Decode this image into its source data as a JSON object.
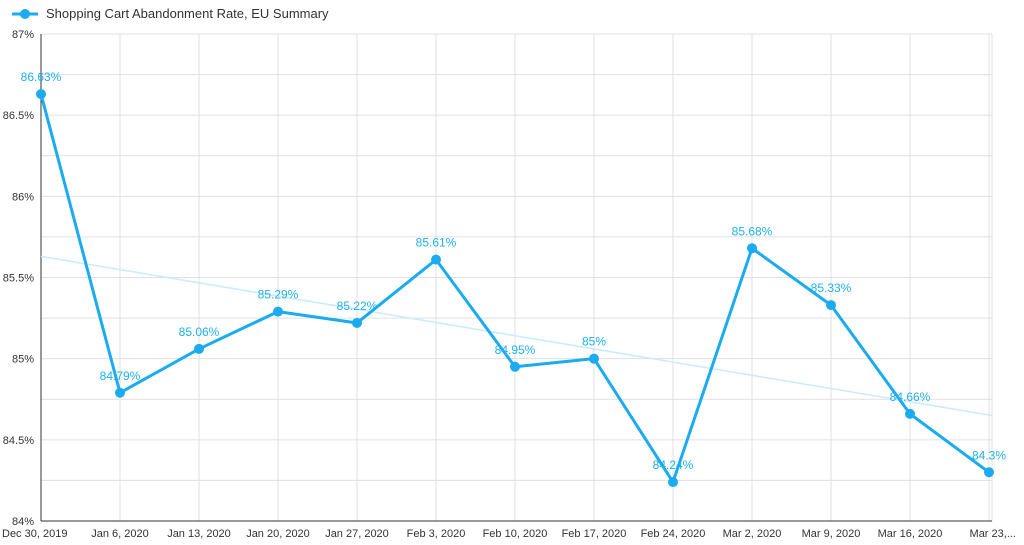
{
  "chart_data": {
    "type": "line",
    "legend": {
      "label": "Shopping Cart Abandonment Rate, EU Summary",
      "position": "top-left"
    },
    "categories": [
      "Dec 30, 2019",
      "Jan 6, 2020",
      "Jan 13, 2020",
      "Jan 20, 2020",
      "Jan 27, 2020",
      "Feb 3, 2020",
      "Feb 10, 2020",
      "Feb 17, 2020",
      "Feb 24, 2020",
      "Mar 2, 2020",
      "Mar 9, 2020",
      "Mar 16, 2020",
      "Mar 23,..."
    ],
    "series": [
      {
        "name": "Shopping Cart Abandonment Rate, EU Summary",
        "values": [
          86.63,
          84.79,
          85.06,
          85.29,
          85.22,
          85.61,
          84.95,
          85.0,
          84.24,
          85.68,
          85.33,
          84.66,
          84.3
        ],
        "labels": [
          "86.63%",
          "84.79%",
          "85.06%",
          "85.29%",
          "85.22%",
          "85.61%",
          "84.95%",
          "85%",
          "84.24%",
          "85.68%",
          "85.33%",
          "84.66%",
          "84.3%"
        ],
        "color": "#1aabf0"
      }
    ],
    "trendline": {
      "start": 85.63,
      "end": 84.65,
      "color": "#c9ebfb"
    },
    "ylim": [
      84,
      87
    ],
    "yticks": [
      84,
      84.5,
      85,
      85.5,
      86,
      86.5,
      87
    ],
    "ytick_labels": [
      "84%",
      "84.5%",
      "85%",
      "85.5%",
      "86%",
      "86.5%",
      "87%"
    ],
    "grid": true,
    "grid_color": "#e0e0e0"
  }
}
